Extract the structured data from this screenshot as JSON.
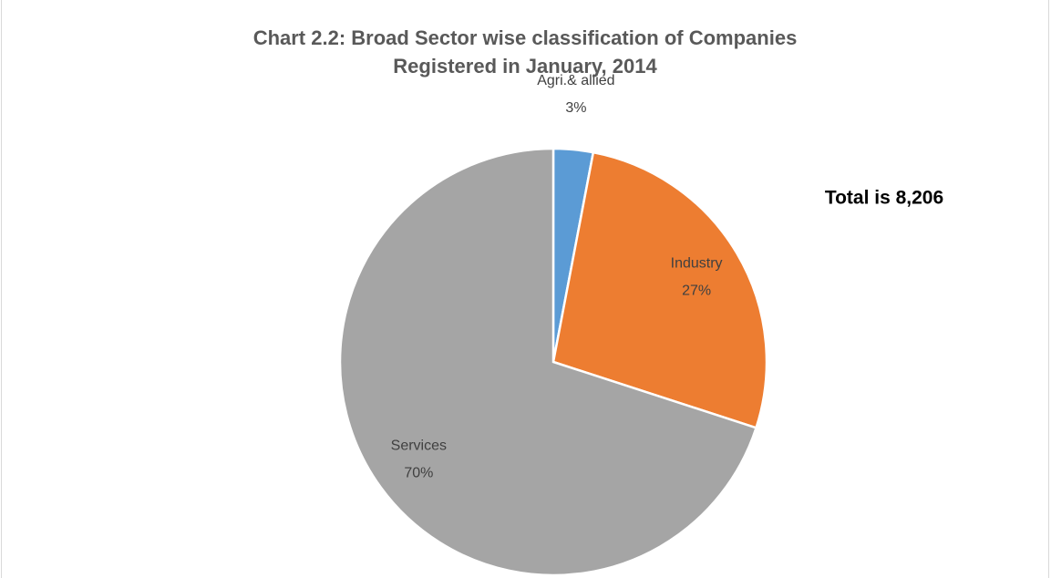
{
  "chart_data": {
    "type": "pie",
    "title": "Chart 2.2: Broad Sector wise classification of Companies Registered in January, 2014",
    "annotation": "Total is 8,206",
    "categories": [
      "Agri.& allied",
      "Industry",
      "Services"
    ],
    "values": [
      3,
      27,
      70
    ],
    "value_labels": [
      "3%",
      "27%",
      "70%"
    ],
    "colors": [
      "#5b9bd5",
      "#ed7d31",
      "#a5a5a5"
    ]
  }
}
